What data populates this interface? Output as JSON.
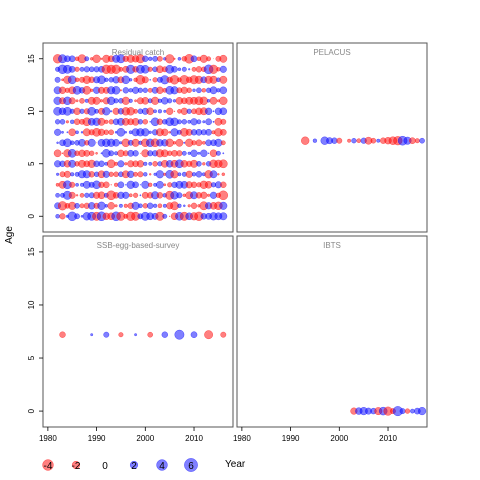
{
  "chart_data": {
    "type": "scatter",
    "title": "",
    "xlabel": "Year",
    "ylabel": "Age",
    "xlim": [
      1979,
      2018
    ],
    "ylim": [
      -1.5,
      16.5
    ],
    "x_ticks": [
      "1980",
      "1990",
      "2000",
      "2010"
    ],
    "y_ticks": [
      "0",
      "5",
      "10",
      "15"
    ],
    "grid": false,
    "colors": {
      "positive": "#0000ff",
      "negative": "#ff0000",
      "frame": "#555555",
      "title": "#888888"
    },
    "panels": [
      {
        "name": "Residual catch",
        "years": [
          1982,
          2016
        ],
        "ages": [
          0,
          15
        ],
        "pattern": "dense"
      },
      {
        "name": "PELACUS",
        "points": [
          [
            1993,
            7.2,
            -2.1
          ],
          [
            1995,
            7.2,
            0.5
          ],
          [
            1997,
            7.2,
            2.1
          ],
          [
            1998,
            7.2,
            1.4
          ],
          [
            1999,
            7.2,
            1.2
          ],
          [
            2000,
            7.2,
            -1.0
          ],
          [
            2002,
            7.2,
            -0.4
          ],
          [
            2003,
            7.2,
            0.8
          ],
          [
            2004,
            7.2,
            -0.6
          ],
          [
            2005,
            7.2,
            1.1
          ],
          [
            2006,
            7.2,
            -1.8
          ],
          [
            2007,
            7.2,
            -0.9
          ],
          [
            2008,
            7.2,
            0.4
          ],
          [
            2009,
            7.2,
            -1.2
          ],
          [
            2010,
            7.2,
            -1.6
          ],
          [
            2011,
            7.2,
            -2.2
          ],
          [
            2012,
            7.2,
            -2.6
          ],
          [
            2013,
            7.2,
            2.8
          ],
          [
            2014,
            7.2,
            1.9
          ],
          [
            2015,
            7.2,
            -1.3
          ],
          [
            2016,
            7.2,
            -0.7
          ],
          [
            2017,
            7.2,
            0.9
          ]
        ]
      },
      {
        "name": "SSB-egg-based-survey",
        "points": [
          [
            1983,
            7.2,
            -1.2
          ],
          [
            1989,
            7.2,
            0.2
          ],
          [
            1992,
            7.2,
            1.0
          ],
          [
            1995,
            7.2,
            -0.7
          ],
          [
            1998,
            7.2,
            0.2
          ],
          [
            2001,
            7.2,
            -0.9
          ],
          [
            2004,
            7.2,
            1.2
          ],
          [
            2007,
            7.2,
            3.0
          ],
          [
            2010,
            7.2,
            1.3
          ],
          [
            2013,
            7.2,
            -2.4
          ],
          [
            2016,
            7.2,
            -1.0
          ]
        ]
      },
      {
        "name": "IBTS",
        "points": [
          [
            2003,
            0,
            -1.5
          ],
          [
            2004,
            0,
            1.6
          ],
          [
            2005,
            0,
            2.0
          ],
          [
            2006,
            0,
            1.4
          ],
          [
            2007,
            0,
            1.2
          ],
          [
            2008,
            0,
            -1.9
          ],
          [
            2009,
            0,
            2.2
          ],
          [
            2010,
            0,
            -2.5
          ],
          [
            2011,
            0,
            -1.0
          ],
          [
            2012,
            0,
            3.1
          ],
          [
            2013,
            0,
            1.0
          ],
          [
            2014,
            0,
            -0.8
          ],
          [
            2015,
            0,
            0.6
          ],
          [
            2016,
            0,
            1.3
          ],
          [
            2017,
            0,
            2.0
          ]
        ]
      }
    ],
    "legend": {
      "values": [
        -4,
        -2,
        0,
        2,
        4,
        6
      ],
      "labels": [
        "-4",
        "-2",
        "0",
        "2",
        "4",
        "6"
      ],
      "placement": "bottom-left"
    }
  }
}
